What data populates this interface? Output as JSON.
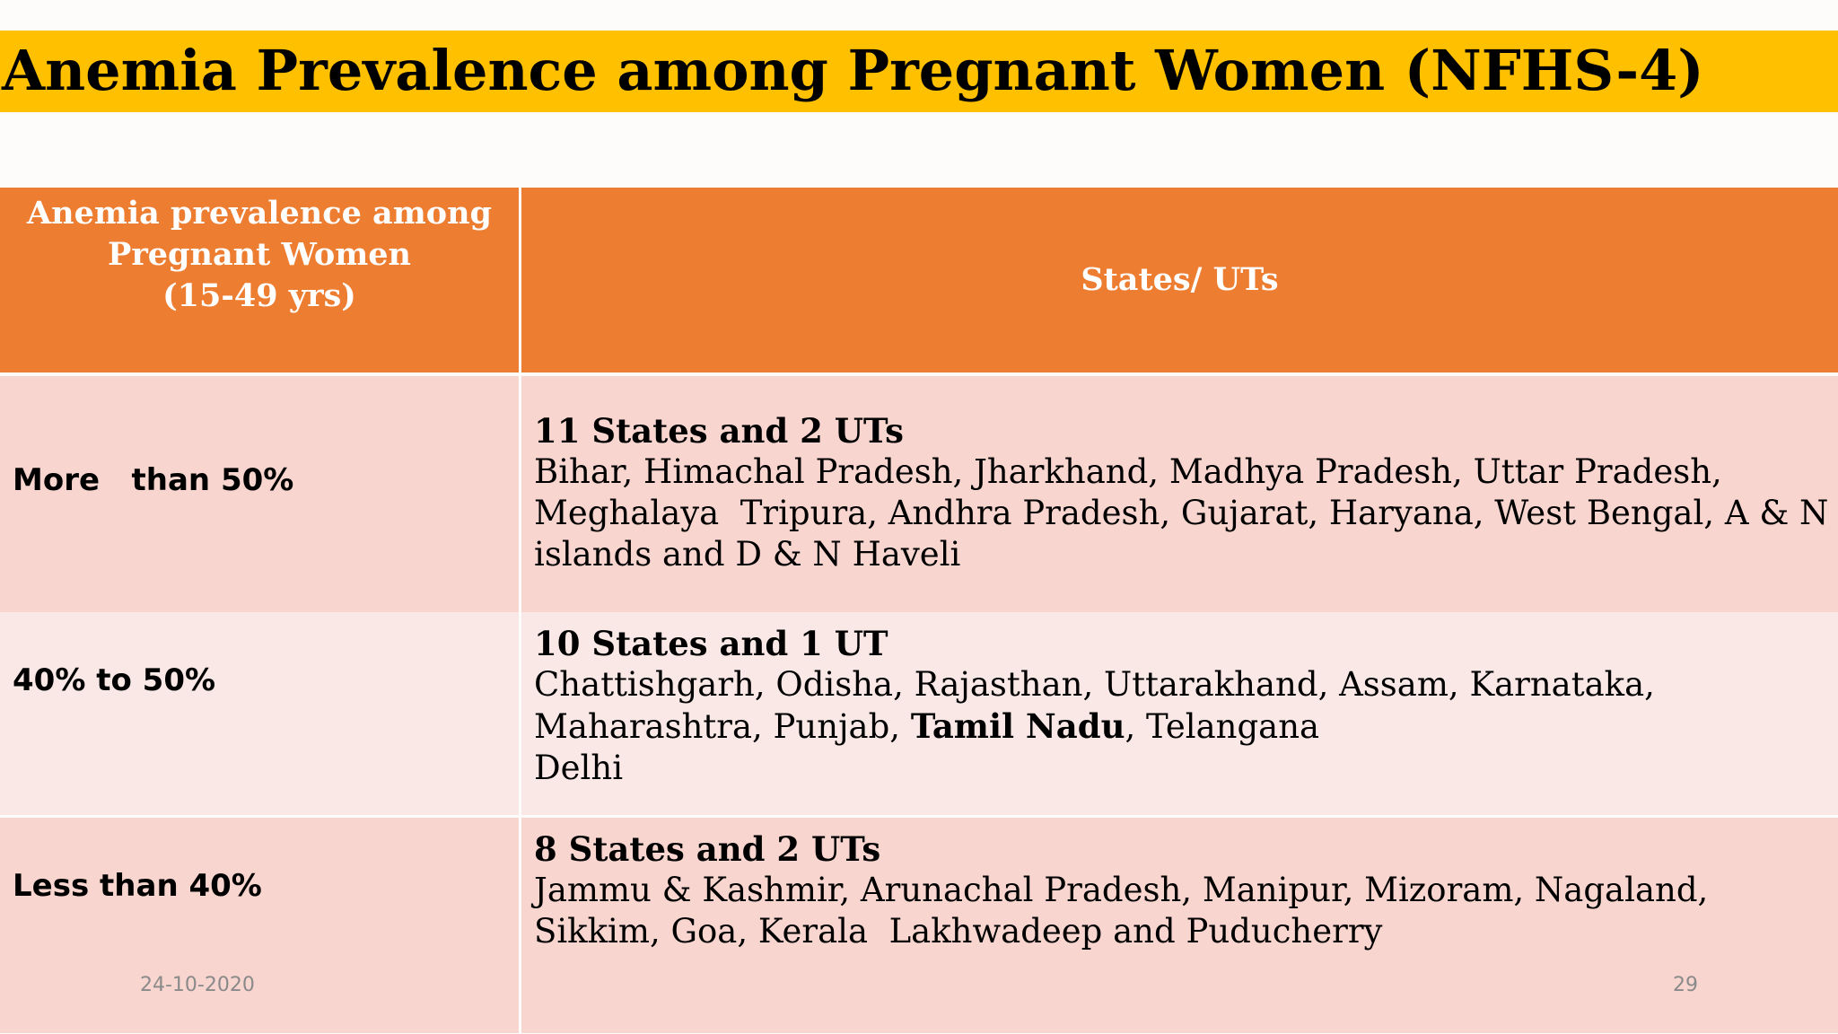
{
  "slide": {
    "title": "Anemia Prevalence among Pregnant Women (NFHS-4)",
    "footer_date": "24-10-2020",
    "page_number": "29"
  },
  "table": {
    "header_left_line1": "Anemia prevalence  among",
    "header_left_line2": "Pregnant Women",
    "header_left_line3": "(15-49 yrs)",
    "header_right": "States/ UTs",
    "rows": [
      {
        "range": "More   than 50%",
        "count": "11 States and 2 UTs",
        "line1": "Bihar, Himachal Pradesh, Jharkhand, Madhya Pradesh, Uttar Pradesh,",
        "line2": "Meghalaya  Tripura, Andhra Pradesh, Gujarat, Haryana, West Bengal, A & N",
        "line3": "islands and D & N Haveli"
      },
      {
        "range": "40% to 50%",
        "count": "10 States and 1 UT",
        "line1": "Chattishgarh, Odisha, Rajasthan, Uttarakhand, Assam, Karnataka,",
        "line2_prefix": "Maharashtra, Punjab, ",
        "line2_bold": "Tamil Nadu",
        "line2_suffix": ", Telangana",
        "line3": "Delhi"
      },
      {
        "range": "Less than 40%",
        "count": "8 States and 2 UTs",
        "line1": "Jammu & Kashmir, Arunachal Pradesh, Manipur, Mizoram, Nagaland,",
        "line2": "Sikkim, Goa, Kerala  Lakhwadeep and Puducherry"
      }
    ]
  },
  "colors": {
    "title_bar": "#ffc000",
    "header_fill": "#ed7d31",
    "row_dark": "#f8d5cf",
    "row_light": "#f9e8e5"
  }
}
